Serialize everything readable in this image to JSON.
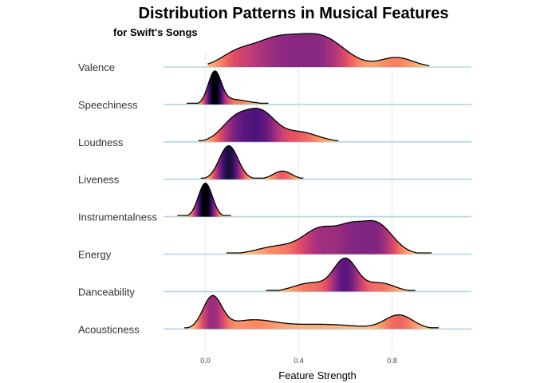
{
  "chart_data": {
    "type": "ridgeline",
    "title": "Distribution Patterns in Musical Features",
    "subtitle": "for Swift's Songs",
    "xlabel": "Feature Strength",
    "ylabel": "",
    "xlim": [
      -0.18,
      1.12
    ],
    "x_ticks": [
      {
        "value": 0.0,
        "label": "0.0"
      },
      {
        "value": 0.4,
        "label": "0.4"
      },
      {
        "value": 0.8,
        "label": "0.8"
      }
    ],
    "grid": true,
    "fill_colormap": "magma (by density)",
    "baseline_color": "#add8e6",
    "series": [
      {
        "name": "Valence",
        "range": [
          0.01,
          0.96
        ],
        "peaks": [
          {
            "mu": 0.13,
            "sd": 0.07,
            "w": 0.3
          },
          {
            "mu": 0.3,
            "sd": 0.1,
            "w": 0.7
          },
          {
            "mu": 0.5,
            "sd": 0.1,
            "w": 0.75
          },
          {
            "mu": 0.82,
            "sd": 0.07,
            "w": 0.25
          }
        ]
      },
      {
        "name": "Speechiness",
        "range": [
          -0.08,
          0.27
        ],
        "peaks": [
          {
            "mu": 0.04,
            "sd": 0.028,
            "w": 1.0
          },
          {
            "mu": 0.11,
            "sd": 0.04,
            "w": 0.12
          },
          {
            "mu": 0.18,
            "sd": 0.05,
            "w": 0.07
          }
        ]
      },
      {
        "name": "Loudness",
        "range": [
          -0.03,
          0.57
        ],
        "peaks": [
          {
            "mu": 0.13,
            "sd": 0.06,
            "w": 0.5
          },
          {
            "mu": 0.24,
            "sd": 0.06,
            "w": 0.6
          },
          {
            "mu": 0.4,
            "sd": 0.08,
            "w": 0.22
          }
        ]
      },
      {
        "name": "Liveness",
        "range": [
          -0.02,
          0.42
        ],
        "peaks": [
          {
            "mu": 0.1,
            "sd": 0.04,
            "w": 0.9
          },
          {
            "mu": 0.33,
            "sd": 0.04,
            "w": 0.22
          }
        ]
      },
      {
        "name": "Instrumentalness",
        "range": [
          -0.12,
          0.11
        ],
        "peaks": [
          {
            "mu": 0.0,
            "sd": 0.03,
            "w": 1.0
          }
        ]
      },
      {
        "name": "Energy",
        "range": [
          0.09,
          0.97
        ],
        "peaks": [
          {
            "mu": 0.3,
            "sd": 0.08,
            "w": 0.15
          },
          {
            "mu": 0.5,
            "sd": 0.08,
            "w": 0.55
          },
          {
            "mu": 0.73,
            "sd": 0.07,
            "w": 0.65
          },
          {
            "mu": 0.62,
            "sd": 0.05,
            "w": 0.3
          }
        ]
      },
      {
        "name": "Danceability",
        "range": [
          0.26,
          0.9
        ],
        "peaks": [
          {
            "mu": 0.6,
            "sd": 0.05,
            "w": 0.95
          },
          {
            "mu": 0.45,
            "sd": 0.07,
            "w": 0.25
          },
          {
            "mu": 0.75,
            "sd": 0.06,
            "w": 0.25
          }
        ]
      },
      {
        "name": "Acousticness",
        "range": [
          -0.09,
          1.0
        ],
        "peaks": [
          {
            "mu": 0.03,
            "sd": 0.04,
            "w": 0.55
          },
          {
            "mu": 0.2,
            "sd": 0.1,
            "w": 0.15
          },
          {
            "mu": 0.5,
            "sd": 0.15,
            "w": 0.08
          },
          {
            "mu": 0.83,
            "sd": 0.06,
            "w": 0.24
          }
        ]
      }
    ]
  }
}
